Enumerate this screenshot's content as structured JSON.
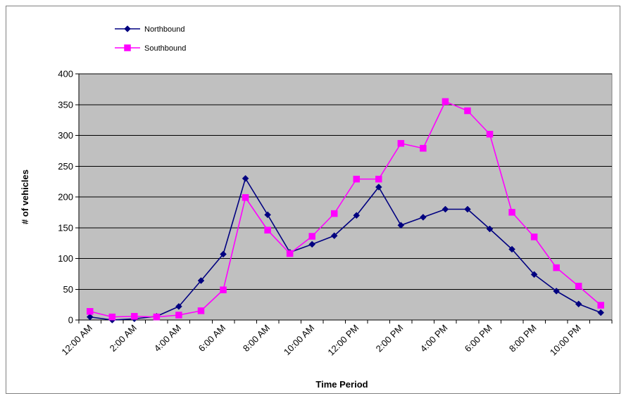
{
  "chart_data": {
    "type": "line",
    "title": "",
    "xlabel": "Time Period",
    "ylabel": "# of vehicles",
    "ylim": [
      0,
      400
    ],
    "yticks": [
      0,
      50,
      100,
      150,
      200,
      250,
      300,
      350,
      400
    ],
    "grid": true,
    "legend_position": "top-left",
    "tick_labels": [
      "12:00 AM",
      "2:00 AM",
      "4:00 AM",
      "6:00 AM",
      "8:00 AM",
      "10:00 AM",
      "12:00 PM",
      "2:00 PM",
      "4:00 PM",
      "6:00 PM",
      "8:00 PM",
      "10:00 PM"
    ],
    "x": [
      "12:00 AM",
      "1:00 AM",
      "2:00 AM",
      "3:00 AM",
      "4:00 AM",
      "5:00 AM",
      "6:00 AM",
      "7:00 AM",
      "8:00 AM",
      "9:00 AM",
      "10:00 AM",
      "11:00 AM",
      "12:00 PM",
      "1:00 PM",
      "2:00 PM",
      "3:00 PM",
      "4:00 PM",
      "5:00 PM",
      "6:00 PM",
      "7:00 PM",
      "8:00 PM",
      "9:00 PM",
      "10:00 PM",
      "11:00 PM"
    ],
    "series": [
      {
        "name": "Northbound",
        "color": "#000080",
        "marker": "diamond",
        "values": [
          5,
          0,
          2,
          6,
          22,
          64,
          107,
          230,
          171,
          110,
          123,
          137,
          170,
          216,
          154,
          167,
          180,
          180,
          148,
          115,
          74,
          47,
          26,
          12
        ]
      },
      {
        "name": "Southbound",
        "color": "#ff00ff",
        "marker": "square",
        "values": [
          14,
          5,
          6,
          5,
          8,
          15,
          49,
          199,
          146,
          108,
          136,
          173,
          229,
          229,
          287,
          279,
          355,
          340,
          302,
          175,
          135,
          85,
          55,
          24
        ]
      }
    ]
  }
}
